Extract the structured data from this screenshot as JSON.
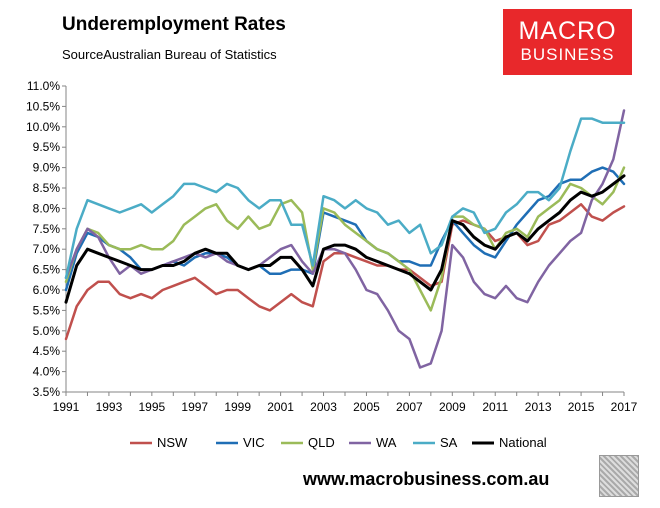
{
  "header": {
    "title": "Underemployment Rates",
    "subtitle": "SourceAustralian Bureau of Statistics",
    "logo_line1": "MACRO",
    "logo_line2": "BUSINESS"
  },
  "footer": {
    "website": "www.macrobusiness.com.au"
  },
  "colors": {
    "NSW": "#c0504d",
    "VIC": "#1f6eb5",
    "QLD": "#9bbb59",
    "WA": "#8064a2",
    "SA": "#4bacc6",
    "National": "#000000",
    "logo_bg": "#e8282b"
  },
  "chart_data": {
    "type": "line",
    "title": "Underemployment Rates",
    "xlabel": "",
    "ylabel": "",
    "xlim": [
      1991,
      2017
    ],
    "ylim": [
      3.5,
      11.0
    ],
    "grid": false,
    "legend": "bottom",
    "x_ticks": [
      1991,
      1993,
      1995,
      1997,
      1999,
      2001,
      2003,
      2005,
      2007,
      2009,
      2011,
      2013,
      2015,
      2017
    ],
    "y_ticks": [
      "3.5%",
      "4.0%",
      "4.5%",
      "5.0%",
      "5.5%",
      "6.0%",
      "6.5%",
      "7.0%",
      "7.5%",
      "8.0%",
      "8.5%",
      "9.0%",
      "9.5%",
      "10.0%",
      "10.5%",
      "11.0%"
    ],
    "x": [
      1991.0,
      1991.5,
      1992.0,
      1992.5,
      1993.0,
      1993.5,
      1994.0,
      1994.5,
      1995.0,
      1995.5,
      1996.0,
      1996.5,
      1997.0,
      1997.5,
      1998.0,
      1998.5,
      1999.0,
      1999.5,
      2000.0,
      2000.5,
      2001.0,
      2001.5,
      2002.0,
      2002.5,
      2003.0,
      2003.5,
      2004.0,
      2004.5,
      2005.0,
      2005.5,
      2006.0,
      2006.5,
      2007.0,
      2007.5,
      2008.0,
      2008.5,
      2009.0,
      2009.5,
      2010.0,
      2010.5,
      2011.0,
      2011.5,
      2012.0,
      2012.5,
      2013.0,
      2013.5,
      2014.0,
      2014.5,
      2015.0,
      2015.5,
      2016.0,
      2016.5,
      2017.0
    ],
    "series": [
      {
        "name": "NSW",
        "values": [
          4.8,
          5.6,
          6.0,
          6.2,
          6.2,
          5.9,
          5.8,
          5.9,
          5.8,
          6.0,
          6.1,
          6.2,
          6.3,
          6.1,
          5.9,
          6.0,
          6.0,
          5.8,
          5.6,
          5.5,
          5.7,
          5.9,
          5.7,
          5.6,
          6.7,
          6.9,
          6.9,
          6.8,
          6.7,
          6.6,
          6.6,
          6.5,
          6.5,
          6.3,
          6.1,
          6.2,
          7.6,
          7.7,
          7.6,
          7.5,
          7.2,
          7.3,
          7.4,
          7.1,
          7.2,
          7.6,
          7.7,
          7.9,
          8.1,
          7.8,
          7.7,
          7.9,
          8.05
        ]
      },
      {
        "name": "VIC",
        "values": [
          6.0,
          6.9,
          7.4,
          7.3,
          7.1,
          7.0,
          6.8,
          6.5,
          6.5,
          6.6,
          6.7,
          6.6,
          6.8,
          6.9,
          6.9,
          6.8,
          6.6,
          6.5,
          6.6,
          6.4,
          6.4,
          6.5,
          6.5,
          6.4,
          7.9,
          7.8,
          7.7,
          7.6,
          7.2,
          7.0,
          6.9,
          6.7,
          6.7,
          6.6,
          6.6,
          7.2,
          7.7,
          7.4,
          7.1,
          6.9,
          6.8,
          7.2,
          7.6,
          7.9,
          8.2,
          8.3,
          8.6,
          8.7,
          8.7,
          8.9,
          9.0,
          8.9,
          8.6
        ]
      },
      {
        "name": "QLD",
        "values": [
          6.2,
          7.0,
          7.5,
          7.4,
          7.1,
          7.0,
          7.0,
          7.1,
          7.0,
          7.0,
          7.2,
          7.6,
          7.8,
          8.0,
          8.1,
          7.7,
          7.5,
          7.8,
          7.5,
          7.6,
          8.1,
          8.2,
          7.9,
          6.5,
          8.0,
          7.9,
          7.6,
          7.4,
          7.2,
          7.0,
          6.9,
          6.7,
          6.5,
          6.0,
          5.5,
          6.3,
          7.8,
          7.8,
          7.6,
          7.5,
          7.0,
          7.4,
          7.5,
          7.3,
          7.8,
          8.0,
          8.2,
          8.6,
          8.5,
          8.3,
          8.1,
          8.4,
          9.0
        ]
      },
      {
        "name": "WA",
        "values": [
          6.3,
          7.0,
          7.5,
          7.3,
          6.8,
          6.4,
          6.6,
          6.4,
          6.5,
          6.6,
          6.7,
          6.8,
          6.9,
          6.8,
          6.9,
          6.7,
          6.6,
          6.5,
          6.6,
          6.8,
          7.0,
          7.1,
          6.7,
          6.4,
          7.0,
          7.0,
          6.9,
          6.5,
          6.0,
          5.9,
          5.5,
          5.0,
          4.8,
          4.1,
          4.2,
          5.0,
          7.1,
          6.8,
          6.2,
          5.9,
          5.8,
          6.1,
          5.8,
          5.7,
          6.2,
          6.6,
          6.9,
          7.2,
          7.4,
          8.2,
          8.6,
          9.2,
          10.4
        ]
      },
      {
        "name": "SA",
        "values": [
          6.3,
          7.5,
          8.2,
          8.1,
          8.0,
          7.9,
          8.0,
          8.1,
          7.9,
          8.1,
          8.3,
          8.6,
          8.6,
          8.5,
          8.4,
          8.6,
          8.5,
          8.2,
          8.0,
          8.2,
          8.2,
          7.6,
          7.6,
          6.6,
          8.3,
          8.2,
          8.0,
          8.2,
          8.0,
          7.9,
          7.6,
          7.7,
          7.4,
          7.6,
          6.9,
          7.1,
          7.8,
          8.0,
          7.9,
          7.4,
          7.5,
          7.9,
          8.1,
          8.4,
          8.4,
          8.2,
          8.5,
          9.4,
          10.2,
          10.2,
          10.1,
          10.1,
          10.1
        ]
      },
      {
        "name": "National",
        "values": [
          5.7,
          6.6,
          7.0,
          6.9,
          6.8,
          6.7,
          6.6,
          6.5,
          6.5,
          6.6,
          6.6,
          6.7,
          6.9,
          7.0,
          6.9,
          6.9,
          6.6,
          6.5,
          6.6,
          6.6,
          6.8,
          6.8,
          6.5,
          6.1,
          7.0,
          7.1,
          7.1,
          7.0,
          6.8,
          6.7,
          6.6,
          6.5,
          6.4,
          6.2,
          6.0,
          6.5,
          7.7,
          7.6,
          7.3,
          7.1,
          7.0,
          7.3,
          7.4,
          7.2,
          7.5,
          7.7,
          7.9,
          8.2,
          8.4,
          8.3,
          8.4,
          8.6,
          8.8
        ]
      }
    ]
  }
}
